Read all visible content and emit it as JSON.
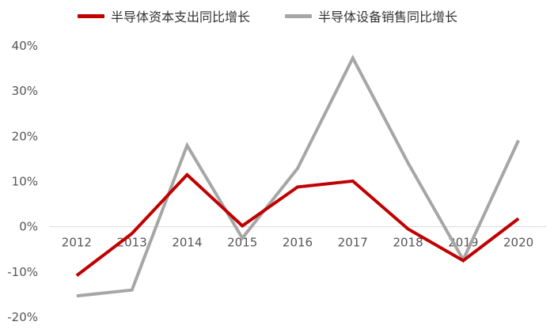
{
  "chart_data": {
    "type": "line",
    "categories": [
      "2012",
      "2013",
      "2014",
      "2015",
      "2016",
      "2017",
      "2018",
      "2019",
      "2020"
    ],
    "series": [
      {
        "name": "半导体资本支出同比增长",
        "color": "#c00000",
        "values": [
          -10.8,
          -1.5,
          11.5,
          0.2,
          8.8,
          10.1,
          -0.5,
          -7.5,
          1.8
        ]
      },
      {
        "name": "半导体设备销售同比增长",
        "color": "#a6a6a6",
        "values": [
          -15.3,
          -14.0,
          18.0,
          -2.5,
          12.9,
          37.3,
          14.1,
          -7.3,
          19.1
        ]
      }
    ],
    "y_ticks": [
      "40%",
      "30%",
      "20%",
      "10%",
      "0%",
      "-10%",
      "-20%"
    ],
    "y_tick_values": [
      40,
      30,
      20,
      10,
      0,
      -10,
      -20
    ],
    "ylim": [
      -20,
      40
    ],
    "legend_position": "top",
    "grid": false
  }
}
